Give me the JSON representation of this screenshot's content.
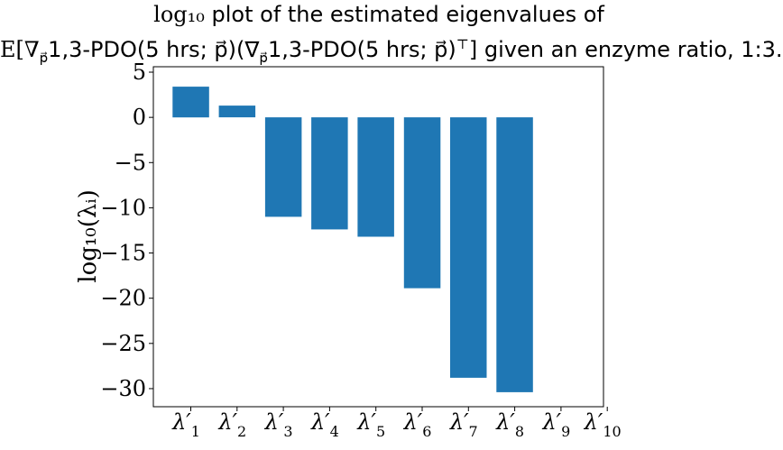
{
  "chart_data": {
    "type": "bar",
    "title_line1_math": "log₁₀",
    "title_line1_text": " plot of the estimated eigenvalues of",
    "title_line2_prefix": "E[∇",
    "title_line2_sub": "p⃗",
    "title_line2_mid1": "1,3-PDO(5 hrs; p⃗)(∇",
    "title_line2_sub2": "p⃗",
    "title_line2_mid2": "1,3-PDO(5 hrs; p⃗)",
    "title_line2_sup": "⊤",
    "title_line2_suffix": "] given an enzyme ratio, 1:3.",
    "ylabel": "log₁₀(λᵢ)",
    "xlabel": "",
    "categories": [
      "λ′1",
      "λ′2",
      "λ′3",
      "λ′4",
      "λ′5",
      "λ′6",
      "λ′7",
      "λ′8",
      "λ′9",
      "λ′10"
    ],
    "category_base": "λ′",
    "category_subscripts": [
      "1",
      "2",
      "3",
      "4",
      "5",
      "6",
      "7",
      "8",
      "9",
      "10"
    ],
    "values": [
      3.4,
      1.3,
      -11.0,
      -12.4,
      -13.2,
      -18.9,
      -28.8,
      -30.4,
      null,
      null
    ],
    "ylim": [
      -32,
      5.6
    ],
    "yticks": [
      5,
      0,
      -5,
      -10,
      -15,
      -20,
      -25,
      -30
    ],
    "ytick_labels": [
      "5",
      "0",
      "−5",
      "−10",
      "−15",
      "−20",
      "−25",
      "−30"
    ],
    "bar_color": "#1f77b4",
    "grid": false,
    "legend": "none"
  }
}
